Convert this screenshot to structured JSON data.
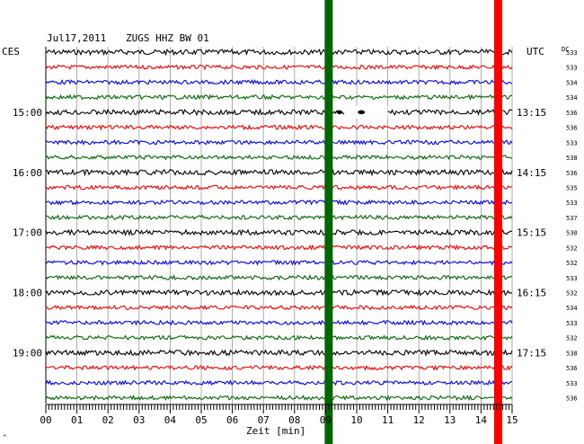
{
  "header": {
    "date": "Jul17,2011",
    "station": "ZUGS HHZ BW 01",
    "left_tz": "CES",
    "right_tz": "UTC",
    "dc_label": "DC"
  },
  "colors": {
    "trace_cycle": [
      "#000000",
      "#ff0000",
      "#0000ff",
      "#006600"
    ],
    "marker_green": "#006600",
    "marker_red": "#ff0000",
    "grid": "#9a9a9a"
  },
  "chart_data": {
    "type": "line",
    "title": "Jul17,2011   ZUGS HHZ BW 01",
    "xlabel": "Zeit [min]",
    "ylabel": "",
    "xlim": [
      0,
      15
    ],
    "x_ticks": [
      "00",
      "01",
      "02",
      "03",
      "04",
      "05",
      "06",
      "07",
      "08",
      "09",
      "10",
      "11",
      "12",
      "13",
      "14",
      "15"
    ],
    "traces_per_hour": 4,
    "trace_count": 24,
    "left_hour_labels": [
      {
        "trace_index": 4,
        "label": "15:00"
      },
      {
        "trace_index": 8,
        "label": "16:00"
      },
      {
        "trace_index": 12,
        "label": "17:00"
      },
      {
        "trace_index": 16,
        "label": "18:00"
      },
      {
        "trace_index": 20,
        "label": "19:00"
      }
    ],
    "right_hour_labels": [
      {
        "trace_index": 4,
        "label": "13:15"
      },
      {
        "trace_index": 8,
        "label": "14:15"
      },
      {
        "trace_index": 12,
        "label": "15:15"
      },
      {
        "trace_index": 16,
        "label": "16:15"
      },
      {
        "trace_index": 20,
        "label": "17:15"
      }
    ],
    "dc_offsets": [
      "533",
      "533",
      "534",
      "534",
      "536",
      "536",
      "533",
      "538",
      "536",
      "535",
      "533",
      "537",
      "530",
      "532",
      "532",
      "533",
      "532",
      "534",
      "533",
      "532",
      "538",
      "536",
      "533",
      "536"
    ],
    "markers": [
      {
        "color": "green",
        "x_min": 9.1
      },
      {
        "color": "red",
        "x_min": 14.55
      }
    ]
  },
  "footer": {
    "corner_mark": "^"
  }
}
